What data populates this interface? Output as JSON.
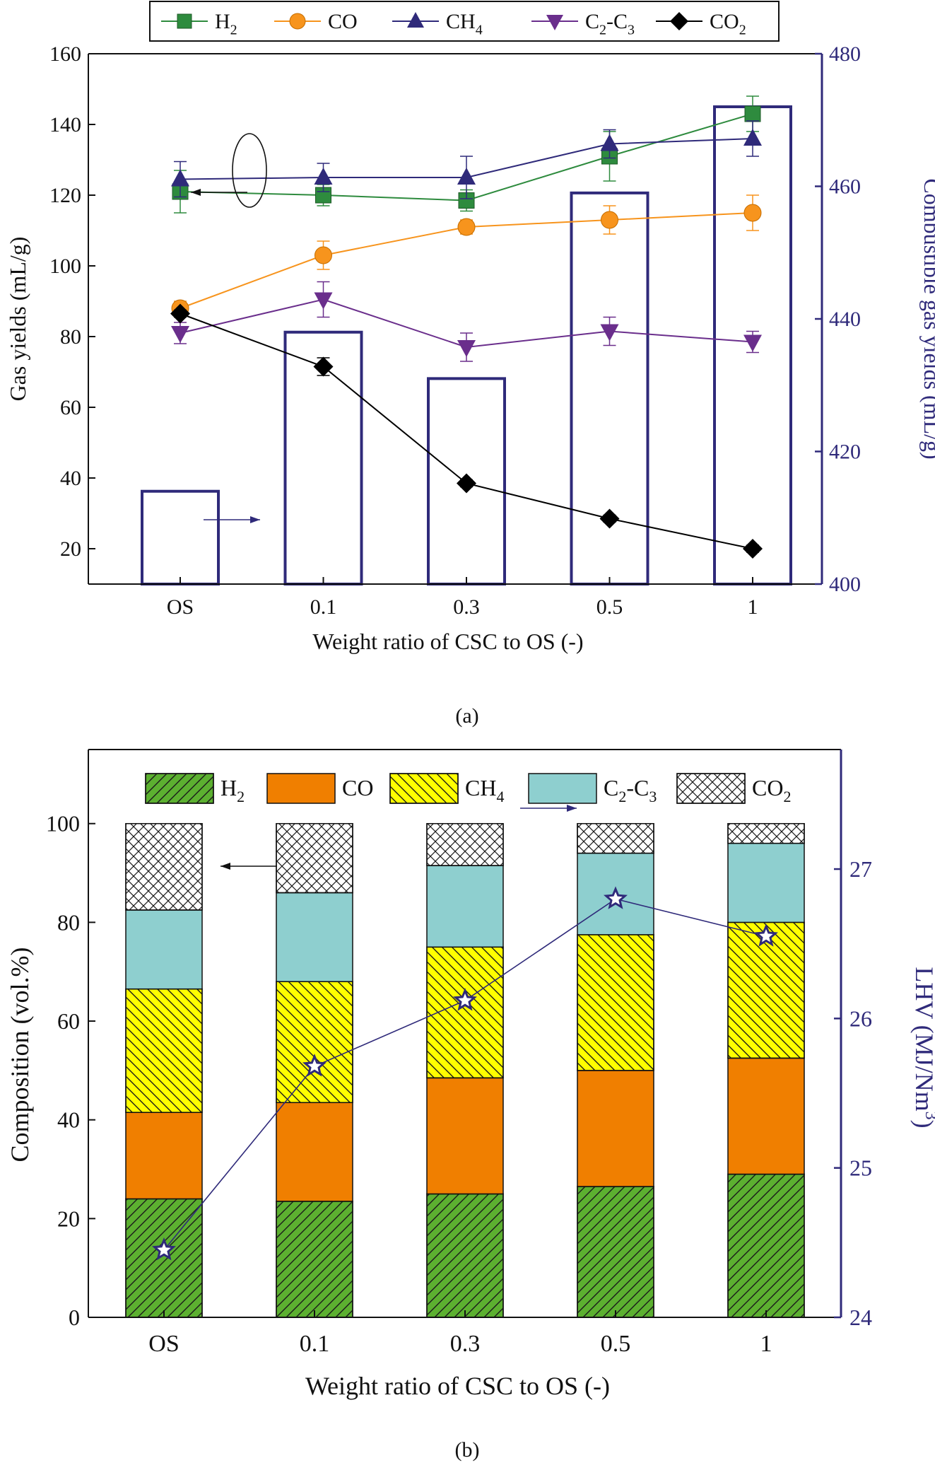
{
  "chart_data": [
    {
      "panel": "(a)",
      "type": "line+bar",
      "xlabel": "Weight ratio of CSC to OS (-)",
      "ylabel": "Gas yields (mL/g)",
      "ylabel2": "Combustible gas yields (mL/g)",
      "categories": [
        "OS",
        "0.1",
        "0.3",
        "0.5",
        "1"
      ],
      "ylim": [
        10,
        160
      ],
      "yticks": [
        20,
        40,
        60,
        80,
        100,
        120,
        140,
        160
      ],
      "y2lim": [
        400,
        480
      ],
      "y2ticks": [
        400,
        420,
        440,
        460,
        480
      ],
      "legend_position": "top",
      "colors": {
        "axis_right": "#2f2a7a"
      },
      "bars": {
        "axis": "right",
        "name": "Combustible gas yields",
        "values": [
          414,
          438,
          431,
          459,
          472
        ],
        "color": "#2f2a7a"
      },
      "series": [
        {
          "name": "H2",
          "sub": "2",
          "marker": "square",
          "color": "#2e8b3e",
          "values": [
            121,
            120,
            118.5,
            131,
            143
          ],
          "errors": [
            6,
            3,
            3,
            7,
            5
          ]
        },
        {
          "name": "CO",
          "marker": "circle",
          "color": "#f7941d",
          "values": [
            88,
            103,
            111,
            113,
            115
          ],
          "errors": [
            2,
            4,
            2,
            4,
            5
          ]
        },
        {
          "name": "CH4",
          "sub": "4",
          "marker": "triangle-up",
          "color": "#2f2a7a",
          "values": [
            124.5,
            125,
            125,
            134.5,
            136
          ],
          "errors": [
            5,
            4,
            6,
            4,
            5
          ]
        },
        {
          "name": "C2-C3",
          "marker": "triangle-down",
          "color": "#6a2e8c",
          "values": [
            81,
            90.5,
            77,
            81.5,
            78.5
          ],
          "errors": [
            3,
            5,
            4,
            4,
            3
          ]
        },
        {
          "name": "CO2",
          "sub": "2",
          "marker": "diamond",
          "color": "#000000",
          "values": [
            86.5,
            71.5,
            38.5,
            28.5,
            20
          ],
          "errors": [
            1,
            2.5,
            1,
            1,
            1
          ]
        }
      ],
      "annotations": [
        "arrow-left pointing to left axis",
        "arrow-right pointing to right axis"
      ]
    },
    {
      "panel": "(b)",
      "type": "stacked-bar+line",
      "xlabel": "Weight ratio of CSC to OS (-)",
      "ylabel": "Composition (vol.%)",
      "ylabel2": "LHV (MJ/Nm3)",
      "categories": [
        "OS",
        "0.1",
        "0.3",
        "0.5",
        "1"
      ],
      "ylim": [
        0,
        115
      ],
      "yticks": [
        0,
        20,
        40,
        60,
        80,
        100
      ],
      "y2lim": [
        24,
        27.8
      ],
      "y2ticks": [
        24,
        25,
        26,
        27
      ],
      "legend_position": "top",
      "stack": [
        {
          "name": "H2",
          "sub": "2",
          "fill": "#5cb030",
          "pattern": "diag-up",
          "values": [
            24,
            23.5,
            25,
            26.5,
            29
          ]
        },
        {
          "name": "CO",
          "fill": "#f07f00",
          "pattern": "none",
          "values": [
            17.5,
            20,
            23.5,
            23.5,
            23.5
          ]
        },
        {
          "name": "CH4",
          "sub": "4",
          "fill": "#ffff00",
          "pattern": "diag-down",
          "values": [
            25,
            24.5,
            26.5,
            27.5,
            27.5
          ]
        },
        {
          "name": "C2-C3",
          "fill": "#8ecfcf",
          "pattern": "none",
          "values": [
            16,
            18,
            16.5,
            16.5,
            16
          ]
        },
        {
          "name": "CO2",
          "sub": "2",
          "fill": "#ffffff",
          "pattern": "crosshatch",
          "values": [
            17.5,
            14,
            8.5,
            6,
            4
          ]
        }
      ],
      "line": {
        "name": "LHV",
        "axis": "right",
        "marker": "star",
        "color": "#2f2a7a",
        "values": [
          24.45,
          25.68,
          26.12,
          26.8,
          26.55
        ]
      }
    }
  ],
  "captions": {
    "a": "(a)",
    "b": "(b)"
  }
}
